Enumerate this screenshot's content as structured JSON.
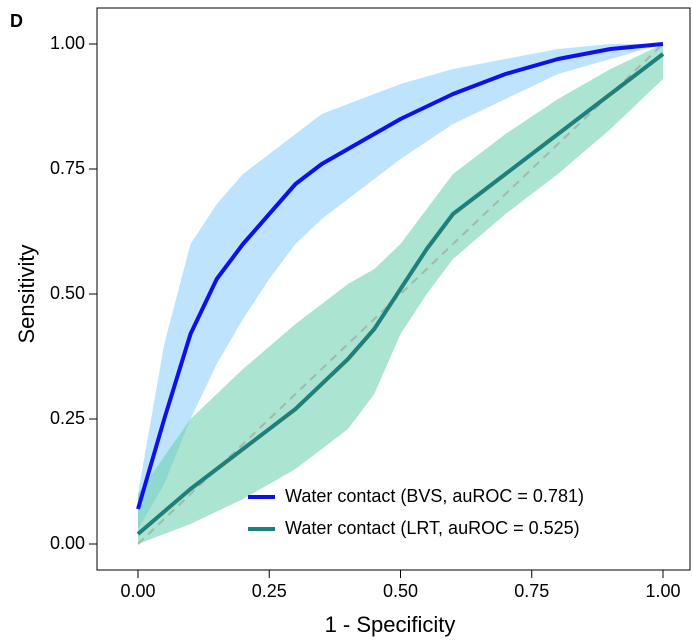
{
  "chart_data": {
    "type": "line",
    "panel_label": "D",
    "x_label": "1 - Specificity",
    "y_label": "Sensitivity",
    "xlim": [
      0,
      1
    ],
    "ylim": [
      0,
      1
    ],
    "xticks": [
      {
        "value": 0,
        "label": "0.00"
      },
      {
        "value": 0.25,
        "label": "0.25"
      },
      {
        "value": 0.5,
        "label": "0.50"
      },
      {
        "value": 0.75,
        "label": "0.75"
      },
      {
        "value": 1,
        "label": "1.00"
      }
    ],
    "yticks": [
      {
        "value": 0,
        "label": "0.00"
      },
      {
        "value": 0.25,
        "label": "0.25"
      },
      {
        "value": 0.5,
        "label": "0.50"
      },
      {
        "value": 0.75,
        "label": "0.75"
      },
      {
        "value": 1,
        "label": "1.00"
      }
    ],
    "legend": "bottom-right",
    "series": [
      {
        "name": "Water contact (BVS, auROC = 0.781)",
        "color": "#1010e8",
        "band_color": "#87cefa",
        "x": [
          0,
          0.05,
          0.1,
          0.15,
          0.2,
          0.25,
          0.3,
          0.35,
          0.4,
          0.5,
          0.6,
          0.7,
          0.8,
          0.9,
          1
        ],
        "values": [
          0.07,
          0.25,
          0.42,
          0.53,
          0.6,
          0.66,
          0.72,
          0.76,
          0.79,
          0.85,
          0.9,
          0.94,
          0.97,
          0.99,
          1
        ],
        "band_lower": [
          0.03,
          0.12,
          0.25,
          0.36,
          0.45,
          0.53,
          0.6,
          0.65,
          0.69,
          0.77,
          0.84,
          0.89,
          0.94,
          0.97,
          1
        ],
        "band_upper": [
          0.1,
          0.4,
          0.6,
          0.68,
          0.74,
          0.78,
          0.82,
          0.86,
          0.88,
          0.92,
          0.95,
          0.97,
          0.99,
          1,
          1
        ]
      },
      {
        "name": "Water contact (LRT, auROC = 0.525)",
        "color": "#1f7f7a",
        "band_color": "#66cdaa",
        "x": [
          0,
          0.1,
          0.2,
          0.3,
          0.4,
          0.45,
          0.5,
          0.55,
          0.6,
          0.7,
          0.8,
          0.9,
          1
        ],
        "values": [
          0.02,
          0.11,
          0.19,
          0.27,
          0.37,
          0.43,
          0.51,
          0.59,
          0.66,
          0.74,
          0.82,
          0.9,
          0.98
        ],
        "band_lower": [
          0,
          0.04,
          0.09,
          0.15,
          0.23,
          0.3,
          0.42,
          0.5,
          0.57,
          0.66,
          0.74,
          0.83,
          0.93
        ],
        "band_upper": [
          0.1,
          0.25,
          0.35,
          0.44,
          0.52,
          0.55,
          0.6,
          0.67,
          0.74,
          0.82,
          0.89,
          0.95,
          1
        ]
      }
    ]
  }
}
